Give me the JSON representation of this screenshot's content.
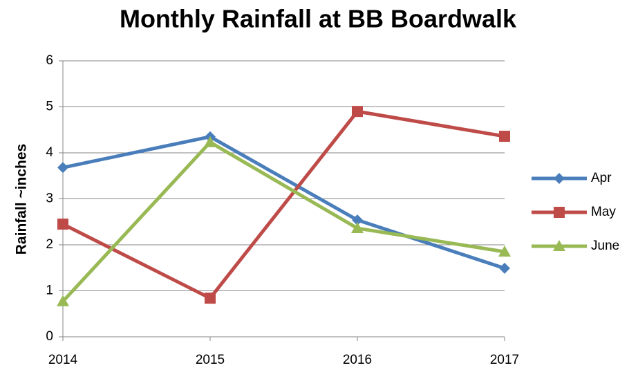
{
  "chart_data": {
    "type": "line",
    "title": "Monthly Rainfall at BB Boardwalk",
    "y_label": "Rainfall ~inches",
    "categories": [
      "2014",
      "2015",
      "2016",
      "2017"
    ],
    "series": [
      {
        "name": "Apr",
        "color": "#4a7ebb",
        "marker": "diamond",
        "values": [
          3.68,
          4.35,
          2.54,
          1.49
        ]
      },
      {
        "name": "May",
        "color": "#be4b48",
        "marker": "square",
        "values": [
          2.45,
          0.84,
          4.9,
          4.36
        ]
      },
      {
        "name": "June",
        "color": "#98b954",
        "marker": "triangle",
        "values": [
          0.77,
          4.23,
          2.36,
          1.85
        ]
      }
    ],
    "ylim": [
      0,
      6
    ],
    "yticks": [
      0,
      1,
      2,
      3,
      4,
      5,
      6
    ],
    "grid": true,
    "legend": "right"
  }
}
